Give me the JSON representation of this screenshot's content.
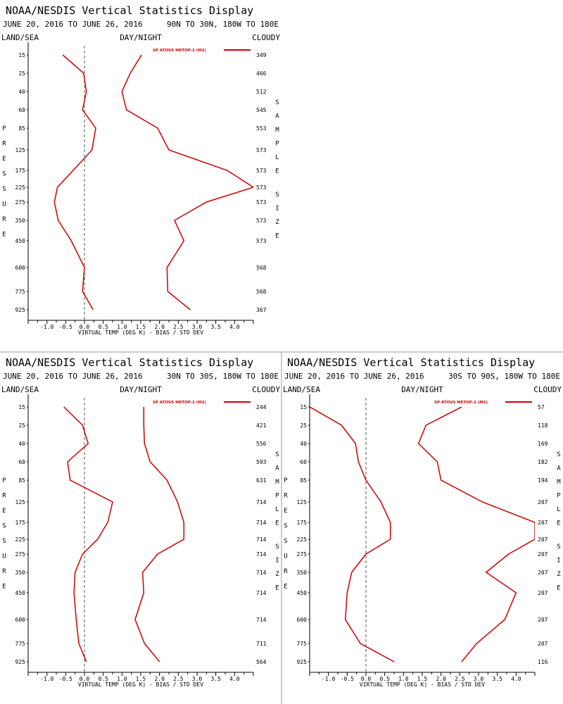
{
  "colors": {
    "series": "#cc0000",
    "axis": "#000000",
    "divider": "#999999",
    "zero_line": "#555555"
  },
  "chart_data": [
    {
      "type": "line",
      "title": "NOAA/NESDIS Vertical Statistics Display",
      "date_range": "JUNE 20, 2016 TO JUNE 26, 2016",
      "region": "90N TO 30N, 180W TO 180E",
      "corner_labels": {
        "left": "LAND/SEA",
        "center": "DAY/NIGHT",
        "right": "CLOUDY"
      },
      "left_axis_label": "PRESSURE",
      "right_axis_label": "SAMPLE SIZE",
      "xlabel": "VIRTUAL TEMP (DEG K) - BIAS / STD DEV",
      "legend": "SP ATOVS METOP-2 (M2)",
      "xlim": [
        -1.5,
        4.5
      ],
      "xticks": [
        "-1.0",
        "-0.5",
        "0.0",
        "0.5",
        "1.0",
        "1.5",
        "2.0",
        "2.5",
        "3.0",
        "3.5",
        "4.0"
      ],
      "pressure_levels": [
        "15",
        "25",
        "40",
        "60",
        "85",
        "125",
        "175",
        "225",
        "275",
        "350",
        "450",
        "600",
        "775",
        "925"
      ],
      "sample_size": [
        "349",
        "466",
        "512",
        "545",
        "553",
        "573",
        "573",
        "573",
        "573",
        "573",
        "573",
        "568",
        "568",
        "367"
      ],
      "series": [
        {
          "name": "bias",
          "values": [
            -0.58,
            -0.02,
            0.05,
            -0.05,
            0.3,
            0.2,
            -0.3,
            -0.72,
            -0.8,
            -0.7,
            -0.35,
            0.0,
            -0.05,
            0.23
          ]
        },
        {
          "name": "std_dev",
          "values": [
            1.52,
            1.22,
            1.0,
            1.12,
            1.95,
            2.25,
            3.8,
            4.5,
            3.25,
            2.4,
            2.65,
            2.2,
            2.22,
            2.82
          ]
        }
      ]
    },
    {
      "type": "line",
      "title": "NOAA/NESDIS Vertical Statistics Display",
      "date_range": "JUNE 20, 2016 TO JUNE 26, 2016",
      "region": "30N TO 30S, 180W TO 180E",
      "corner_labels": {
        "left": "LAND/SEA",
        "center": "DAY/NIGHT",
        "right": "CLOUDY"
      },
      "left_axis_label": "PRESSURE",
      "right_axis_label": "SAMPLE SIZE",
      "xlabel": "VIRTUAL TEMP (DEG K) - BIAS / STD DEV",
      "legend": "SP ATOVS METOP-2 (M2)",
      "xlim": [
        -1.5,
        4.5
      ],
      "xticks": [
        "-1.0",
        "-0.5",
        "0.0",
        "0.5",
        "1.0",
        "1.5",
        "2.0",
        "2.5",
        "3.0",
        "3.5",
        "4.0"
      ],
      "pressure_levels": [
        "15",
        "25",
        "40",
        "60",
        "85",
        "125",
        "175",
        "225",
        "275",
        "350",
        "450",
        "600",
        "775",
        "925"
      ],
      "sample_size": [
        "244",
        "421",
        "556",
        "593",
        "631",
        "714",
        "714",
        "714",
        "714",
        "714",
        "714",
        "714",
        "711",
        "564"
      ],
      "series": [
        {
          "name": "bias",
          "values": [
            -0.55,
            -0.05,
            0.1,
            -0.45,
            -0.38,
            0.75,
            0.62,
            0.35,
            -0.05,
            -0.25,
            -0.28,
            -0.22,
            -0.15,
            0.05
          ]
        },
        {
          "name": "std_dev",
          "values": [
            1.58,
            1.58,
            1.6,
            1.75,
            2.2,
            2.48,
            2.65,
            2.65,
            1.95,
            1.55,
            1.58,
            1.35,
            1.6,
            2.0
          ]
        }
      ]
    },
    {
      "type": "line",
      "title": "NOAA/NESDIS Vertical Statistics Display",
      "date_range": "JUNE 20, 2016 TO JUNE 26, 2016",
      "region": "30S TO 90S, 180W TO 180E",
      "corner_labels": {
        "left": "LAND/SEA",
        "center": "DAY/NIGHT",
        "right": "CLOUDY"
      },
      "left_axis_label": "PRESSURE",
      "right_axis_label": "SAMPLE SIZE",
      "xlabel": "VIRTUAL TEMP (DEG K) - BIAS / STD DEV",
      "legend": "SP ATOVS METOP-2 (M2)",
      "xlim": [
        -1.5,
        4.5
      ],
      "xticks": [
        "-1.0",
        "-0.5",
        "0.0",
        "0.5",
        "1.0",
        "1.5",
        "2.0",
        "2.5",
        "3.0",
        "3.5",
        "4.0"
      ],
      "pressure_levels": [
        "15",
        "25",
        "40",
        "60",
        "85",
        "125",
        "175",
        "225",
        "275",
        "350",
        "450",
        "600",
        "775",
        "925"
      ],
      "sample_size": [
        "57",
        "118",
        "169",
        "182",
        "194",
        "207",
        "207",
        "207",
        "207",
        "207",
        "207",
        "207",
        "207",
        "116"
      ],
      "series": [
        {
          "name": "bias",
          "values": [
            -1.5,
            -0.65,
            -0.28,
            -0.2,
            0.0,
            0.4,
            0.65,
            0.65,
            0.0,
            -0.38,
            -0.5,
            -0.55,
            -0.15,
            0.75
          ]
        },
        {
          "name": "std_dev",
          "values": [
            2.55,
            1.6,
            1.4,
            1.9,
            2.0,
            3.1,
            4.5,
            4.5,
            3.8,
            3.2,
            4.0,
            3.7,
            2.95,
            2.55
          ]
        }
      ]
    }
  ]
}
